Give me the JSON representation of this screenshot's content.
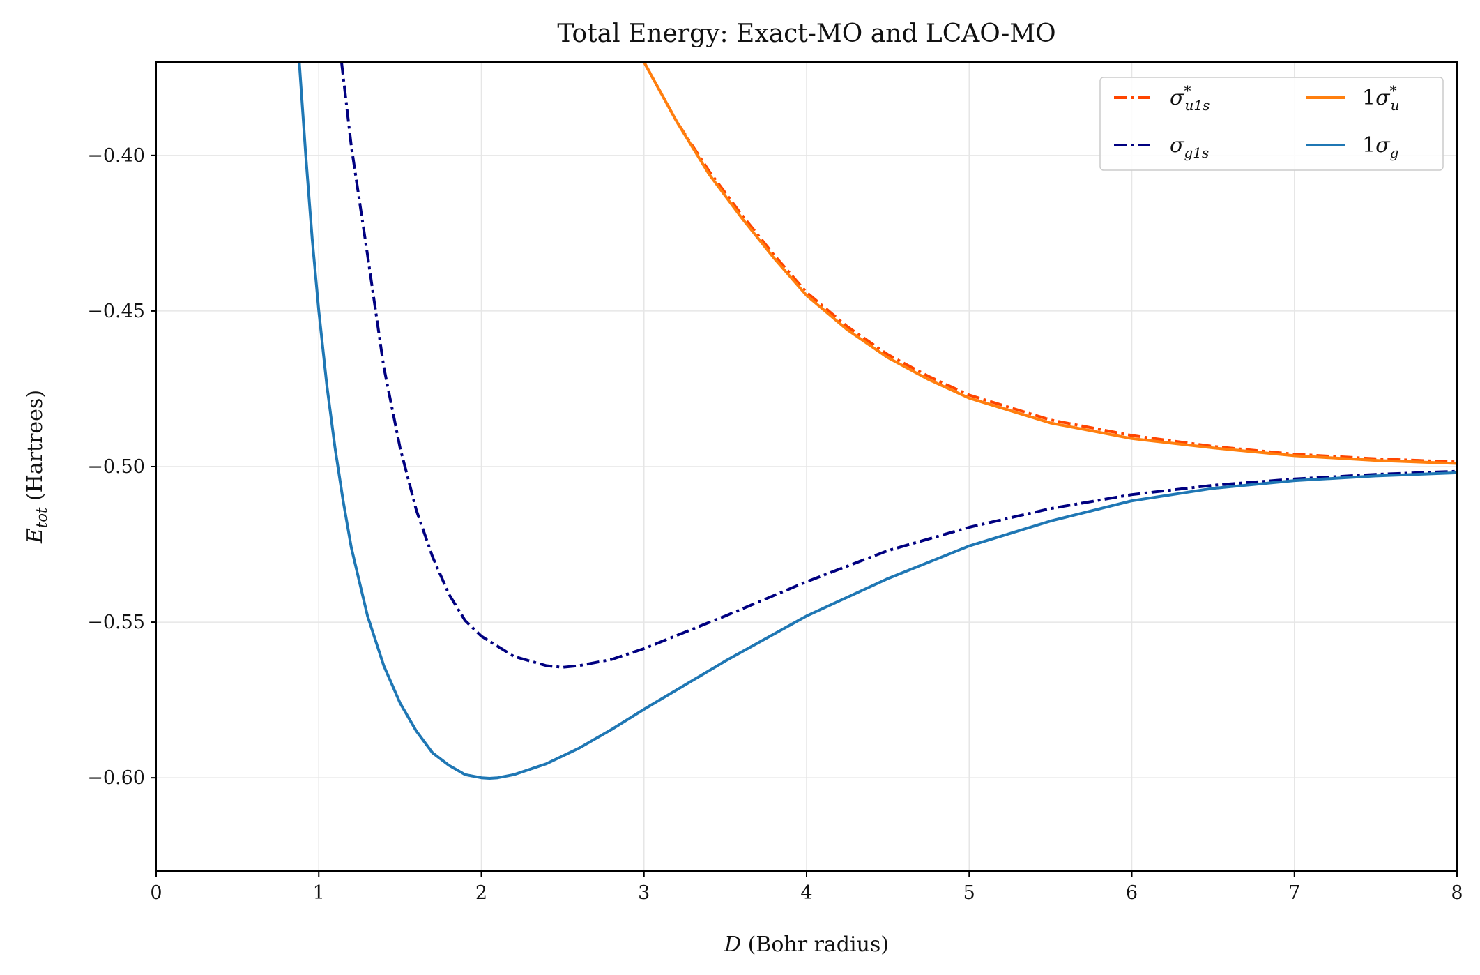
{
  "chart_data": {
    "type": "line",
    "title": "Total Energy: Exact-MO and LCAO-MO",
    "xlabel": {
      "italic": "D",
      "rest": " (Bohr radius)"
    },
    "ylabel": {
      "base": "E",
      "sub": "tot",
      "rest": " (Hartrees)"
    },
    "xlim": [
      0,
      8
    ],
    "ylim": [
      -0.63,
      -0.37
    ],
    "grid": true,
    "legend_position": "top-right",
    "xticks": [
      0,
      1,
      2,
      3,
      4,
      5,
      6,
      7,
      8
    ],
    "xtick_labels": [
      "0",
      "1",
      "2",
      "3",
      "4",
      "5",
      "6",
      "7",
      "8"
    ],
    "yticks": [
      -0.6,
      -0.55,
      -0.5,
      -0.45,
      -0.4
    ],
    "ytick_labels": [
      "−0.60",
      "−0.55",
      "−0.50",
      "−0.45",
      "−0.40"
    ],
    "series": [
      {
        "id": "sigma-u1s-star",
        "legend": {
          "base": "σ",
          "sup": "*",
          "sub": "u1s",
          "prefix": ""
        },
        "color": "#ff4500",
        "style": "dashdot",
        "x": [
          3.0,
          3.2,
          3.4,
          3.6,
          3.8,
          4.0,
          4.25,
          4.5,
          4.75,
          5.0,
          5.5,
          6.0,
          6.5,
          7.0,
          7.5,
          8.0
        ],
        "y": [
          -0.37,
          -0.389,
          -0.405,
          -0.419,
          -0.432,
          -0.444,
          -0.455,
          -0.464,
          -0.471,
          -0.477,
          -0.485,
          -0.49,
          -0.4935,
          -0.496,
          -0.4975,
          -0.4985
        ]
      },
      {
        "id": "sigma-g1s",
        "legend": {
          "base": "σ",
          "sup": "",
          "sub": "g1s",
          "prefix": ""
        },
        "color": "#000080",
        "style": "dashdot",
        "x": [
          1.14,
          1.2,
          1.3,
          1.4,
          1.5,
          1.6,
          1.7,
          1.8,
          1.9,
          2.0,
          2.2,
          2.4,
          2.5,
          2.6,
          2.8,
          3.0,
          3.5,
          4.0,
          4.5,
          5.0,
          5.5,
          6.0,
          6.5,
          7.0,
          7.5,
          8.0
        ],
        "y": [
          -0.37,
          -0.397,
          -0.432,
          -0.468,
          -0.494,
          -0.514,
          -0.529,
          -0.541,
          -0.5495,
          -0.5545,
          -0.561,
          -0.564,
          -0.5645,
          -0.564,
          -0.562,
          -0.5585,
          -0.548,
          -0.537,
          -0.527,
          -0.5195,
          -0.5135,
          -0.509,
          -0.506,
          -0.504,
          -0.5025,
          -0.5015
        ]
      },
      {
        "id": "one-sigma-u-star",
        "legend": {
          "base": "σ",
          "sup": "*",
          "sub": "u",
          "prefix": "1"
        },
        "color": "#ff7f0e",
        "style": "solid",
        "x": [
          3.0,
          3.2,
          3.4,
          3.6,
          3.8,
          4.0,
          4.25,
          4.5,
          4.75,
          5.0,
          5.5,
          6.0,
          6.5,
          7.0,
          7.5,
          8.0
        ],
        "y": [
          -0.37,
          -0.389,
          -0.406,
          -0.42,
          -0.433,
          -0.445,
          -0.456,
          -0.465,
          -0.472,
          -0.478,
          -0.486,
          -0.491,
          -0.494,
          -0.4965,
          -0.498,
          -0.499
        ]
      },
      {
        "id": "one-sigma-g",
        "legend": {
          "base": "σ",
          "sup": "",
          "sub": "g",
          "prefix": "1"
        },
        "color": "#1f77b4",
        "style": "solid",
        "x": [
          0.88,
          0.92,
          0.96,
          1.0,
          1.05,
          1.1,
          1.15,
          1.2,
          1.3,
          1.4,
          1.5,
          1.6,
          1.7,
          1.8,
          1.9,
          2.0,
          2.05,
          2.1,
          2.2,
          2.4,
          2.6,
          2.8,
          3.0,
          3.5,
          4.0,
          4.5,
          5.0,
          5.5,
          6.0,
          6.5,
          7.0,
          7.5,
          8.0
        ],
        "y": [
          -0.37,
          -0.4,
          -0.427,
          -0.45,
          -0.474,
          -0.494,
          -0.511,
          -0.526,
          -0.548,
          -0.564,
          -0.576,
          -0.585,
          -0.592,
          -0.596,
          -0.599,
          -0.6,
          -0.6002,
          -0.6,
          -0.599,
          -0.5955,
          -0.5905,
          -0.5845,
          -0.578,
          -0.5625,
          -0.548,
          -0.536,
          -0.5255,
          -0.5175,
          -0.511,
          -0.507,
          -0.5045,
          -0.503,
          -0.502
        ]
      }
    ]
  }
}
